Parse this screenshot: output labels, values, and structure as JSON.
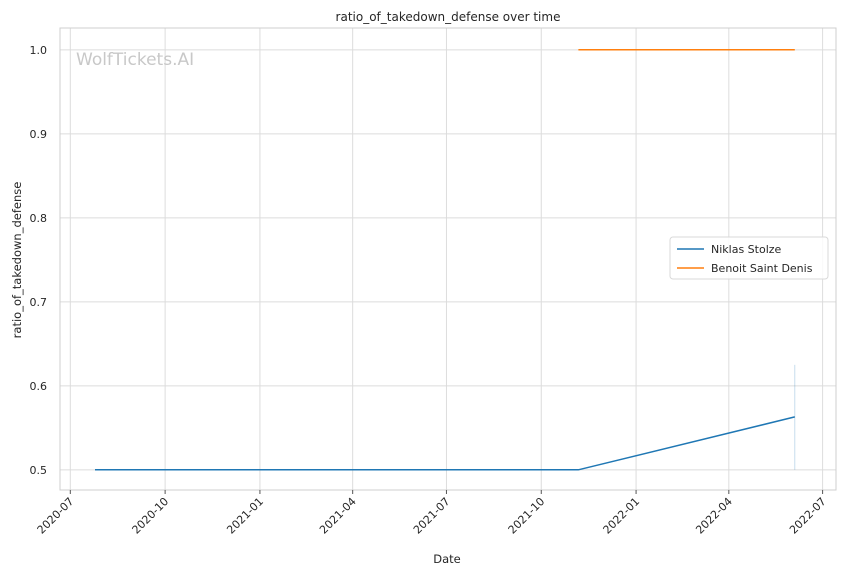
{
  "chart_data": {
    "type": "line",
    "title": "ratio_of_takedown_defense over time",
    "xlabel": "Date",
    "ylabel": "ratio_of_takedown_defense",
    "watermark": "WolfTickets.AI",
    "x_ticks": [
      "2020-07",
      "2020-10",
      "2021-01",
      "2021-04",
      "2021-07",
      "2021-10",
      "2022-01",
      "2022-04",
      "2022-07"
    ],
    "y_ticks": [
      0.5,
      0.6,
      0.7,
      0.8,
      0.9,
      1.0
    ],
    "y_tick_labels": [
      "0.5",
      "0.6",
      "0.7",
      "0.8",
      "0.9",
      "1.0"
    ],
    "xlim": [
      "2020-06-21",
      "2022-07-14"
    ],
    "ylim": [
      0.476,
      1.026
    ],
    "grid": true,
    "legend_position": "center-right",
    "series": [
      {
        "name": "Niklas Stolze",
        "color": "#1f77b4",
        "points": [
          {
            "x": "2020-07-25",
            "y": 0.5
          },
          {
            "x": "2021-11-06",
            "y": 0.5
          },
          {
            "x": "2022-06-04",
            "y": 0.563
          }
        ]
      },
      {
        "name": "Benoit Saint Denis",
        "color": "#ff7f0e",
        "points": [
          {
            "x": "2021-11-06",
            "y": 1.0
          },
          {
            "x": "2022-06-04",
            "y": 1.0
          }
        ]
      }
    ],
    "confidence_band": {
      "x": "2022-06-04",
      "y_low": 0.5,
      "y_high": 0.625,
      "color": "#1f77b4"
    }
  }
}
